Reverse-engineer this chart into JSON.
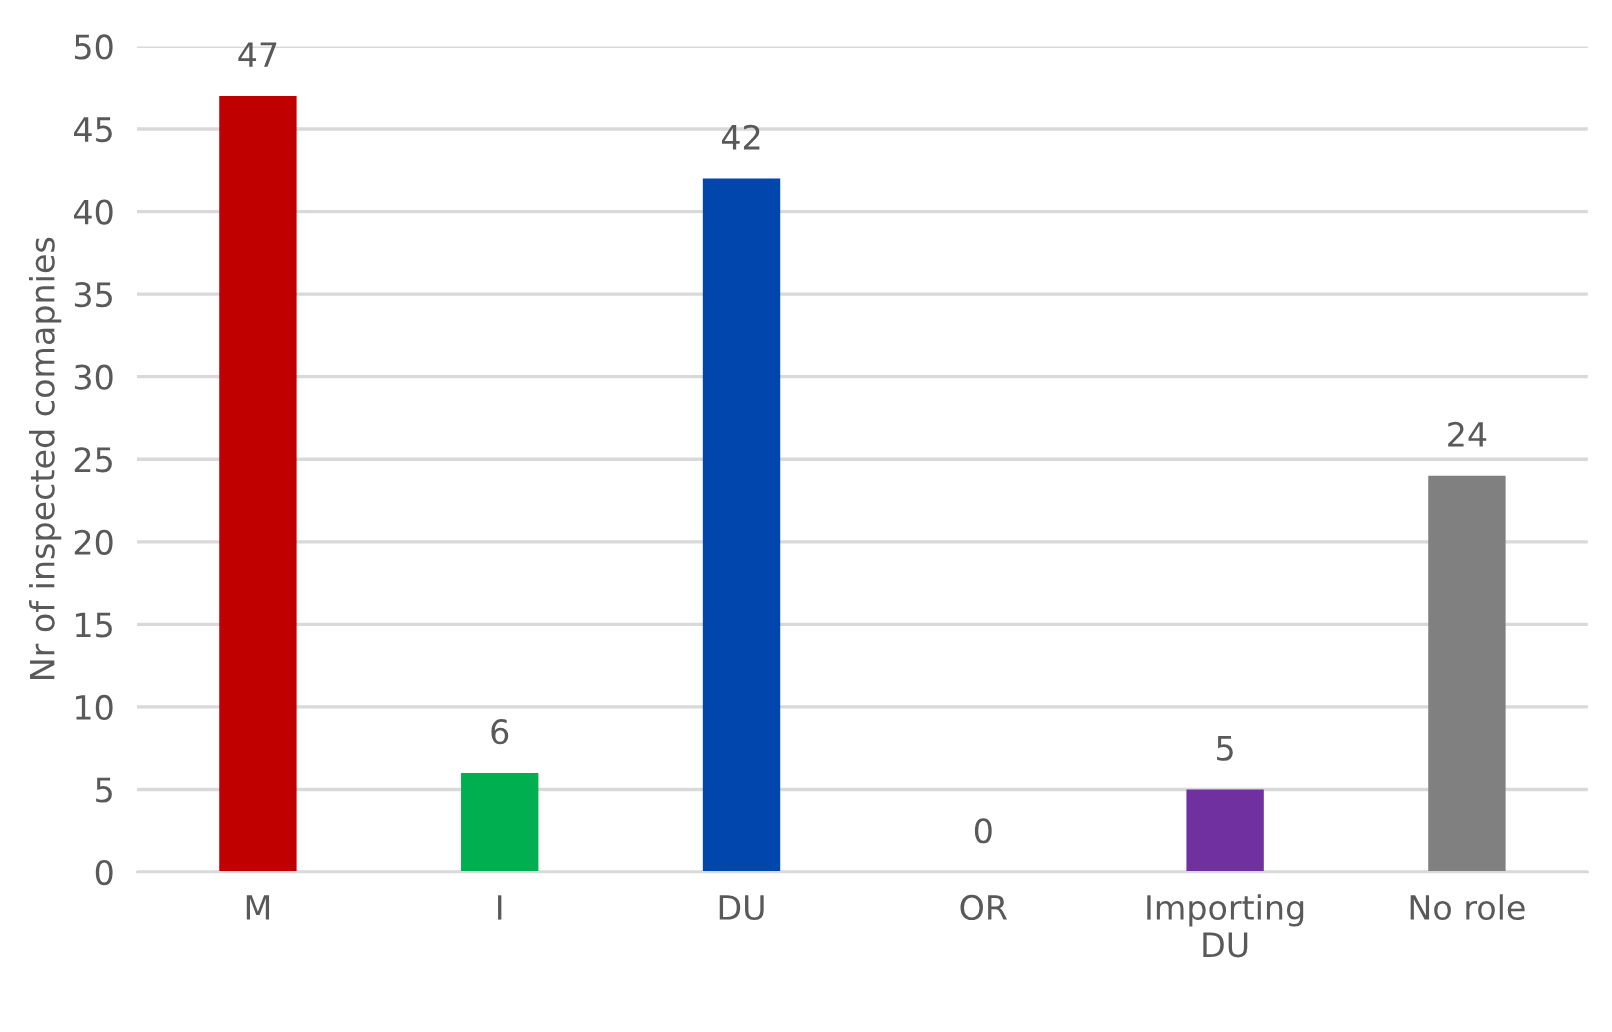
{
  "chart_data": {
    "type": "bar",
    "ylabel": "Nr of inspected comapnies",
    "categories": [
      "M",
      "I",
      "DU",
      "OR",
      "Importing\nDU",
      "No role"
    ],
    "values": [
      47,
      6,
      42,
      0,
      5,
      24
    ],
    "colors": [
      "#c00000",
      "#00b050",
      "#0046ad",
      "#ffc000",
      "#7030a0",
      "#808080"
    ],
    "ylim": [
      0,
      50
    ],
    "yticks": [
      0,
      5,
      10,
      15,
      20,
      25,
      30,
      35,
      40,
      45,
      50
    ],
    "grid": "y",
    "data_labels": true
  }
}
